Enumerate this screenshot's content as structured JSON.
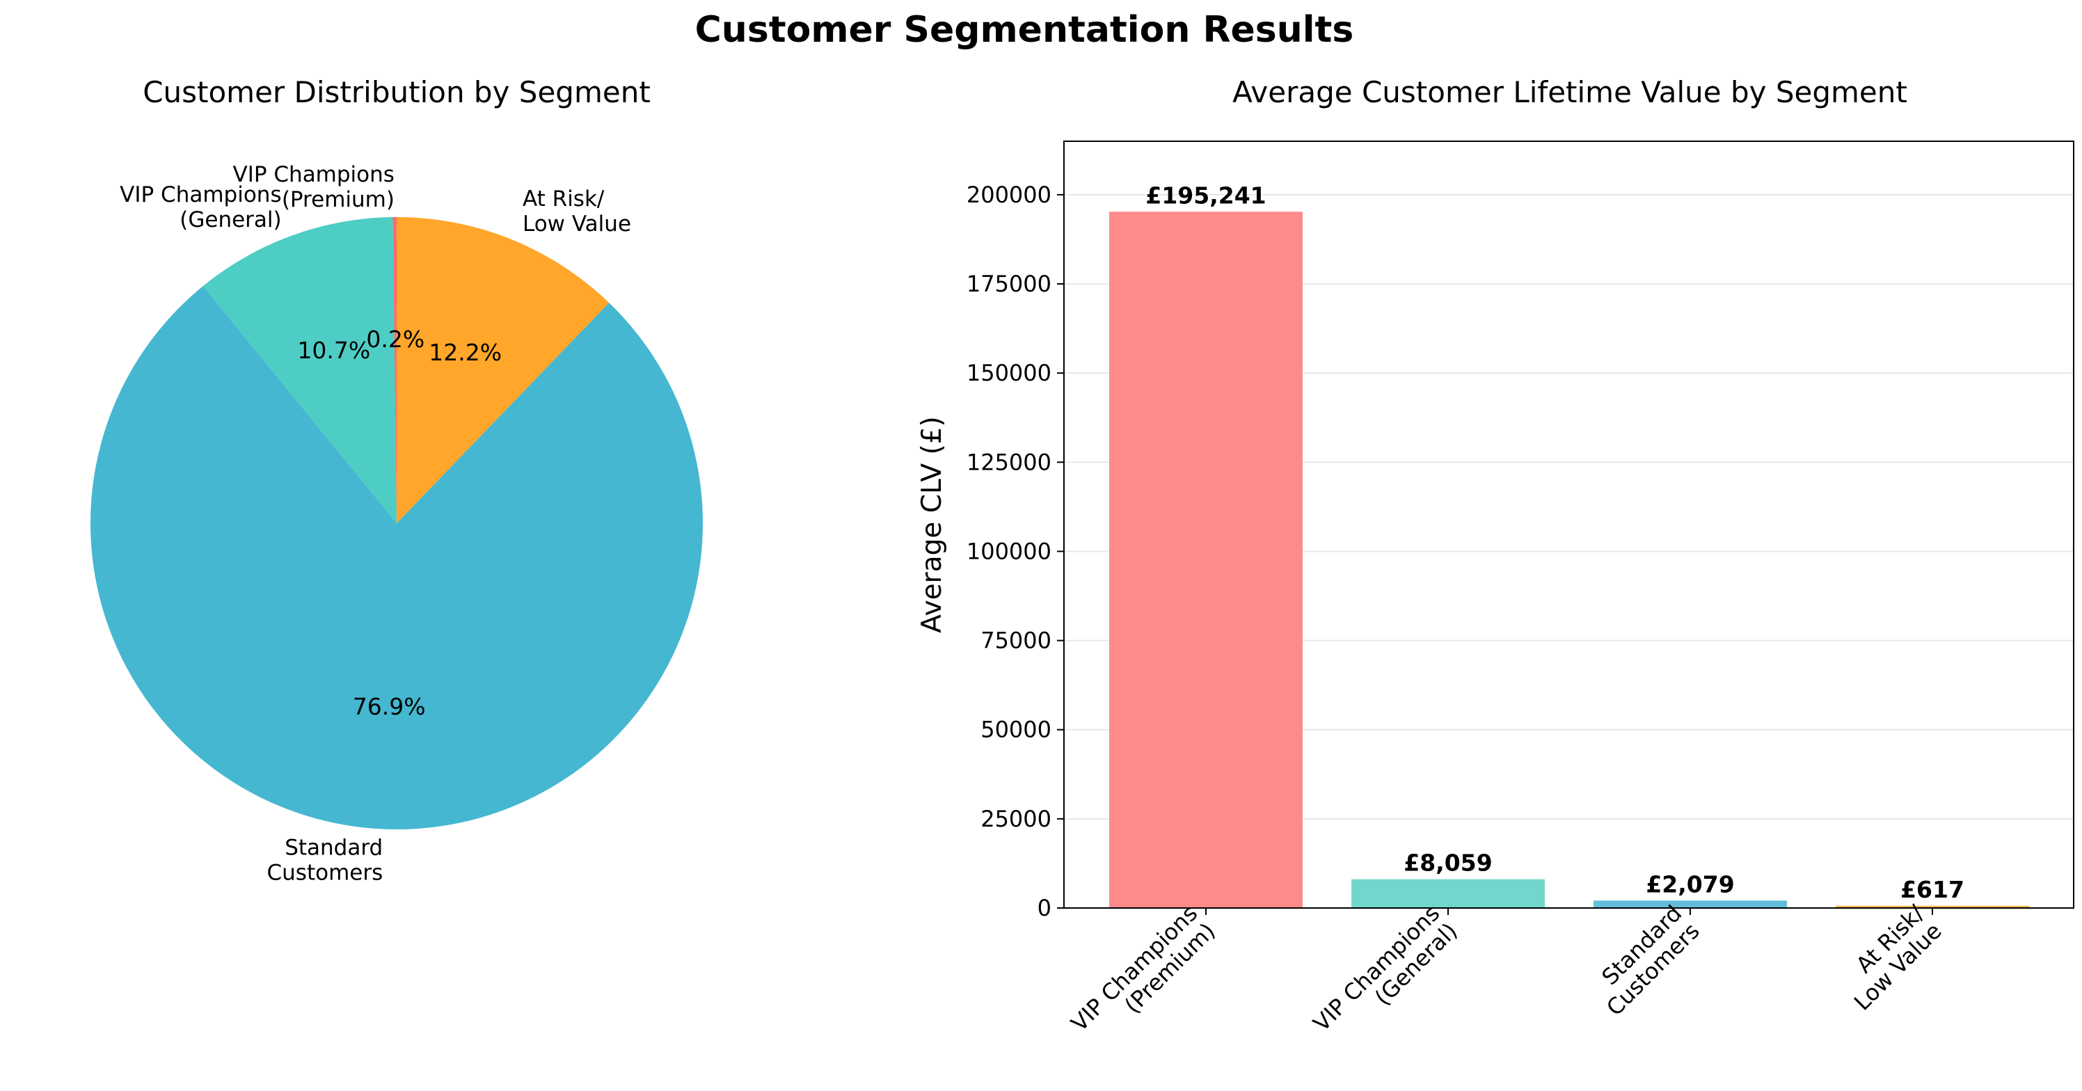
{
  "figure": {
    "suptitle": "Customer Segmentation Results"
  },
  "chart_data": [
    {
      "type": "pie",
      "title": "Customer Distribution by Segment",
      "start_angle_deg": 90,
      "direction": "counterclockwise",
      "slices": [
        {
          "label": [
            "VIP Champions",
            "(Premium)"
          ],
          "value": 0.2,
          "pct_label": "0.2%",
          "color": "#ff6b6b"
        },
        {
          "label": [
            "VIP Champions",
            "(General)"
          ],
          "value": 10.7,
          "pct_label": "10.7%",
          "color": "#4ecdc4"
        },
        {
          "label": [
            "Standard",
            "Customers"
          ],
          "value": 76.9,
          "pct_label": "76.9%",
          "color": "#45b7d1"
        },
        {
          "label": [
            "At Risk/",
            "Low Value"
          ],
          "value": 12.2,
          "pct_label": "12.2%",
          "color": "#ffa62b"
        }
      ]
    },
    {
      "type": "bar",
      "title": "Average Customer Lifetime Value by Segment",
      "ylabel": "Average CLV (£)",
      "xlabel": "",
      "ylim": [
        0,
        215000
      ],
      "yticks": [
        0,
        25000,
        50000,
        75000,
        100000,
        125000,
        150000,
        175000,
        200000
      ],
      "ytick_labels": [
        "0",
        "25000",
        "50000",
        "75000",
        "100000",
        "125000",
        "150000",
        "175000",
        "200000"
      ],
      "grid": "y",
      "categories": [
        [
          "VIP Champions",
          "(Premium)"
        ],
        [
          "VIP Champions",
          "(General)"
        ],
        [
          "Standard",
          "Customers"
        ],
        [
          "At Risk/",
          "Low Value"
        ]
      ],
      "values": [
        195241,
        8059,
        2079,
        617
      ],
      "value_labels": [
        "£195,241",
        "£8,059",
        "£2,079",
        "£617"
      ],
      "colors": [
        "#ff8a8a",
        "#72d6cc",
        "#63bfd9",
        "#ffb04a"
      ]
    }
  ]
}
